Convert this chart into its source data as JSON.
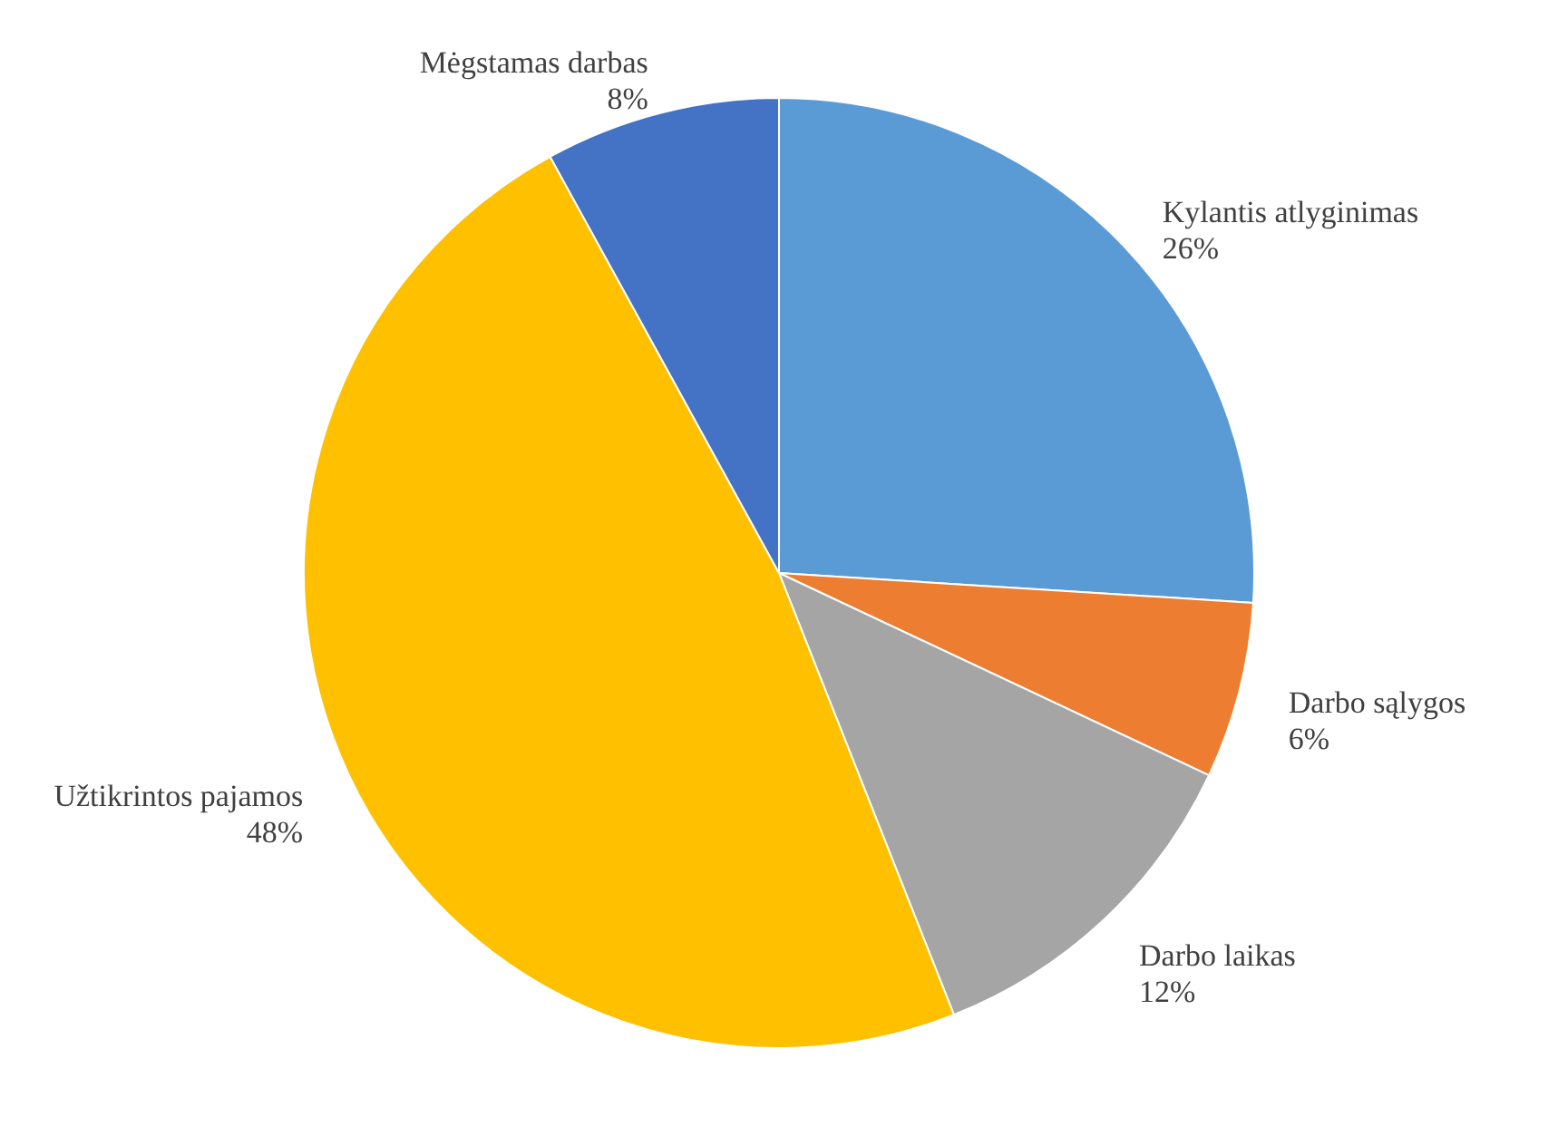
{
  "chart_data": {
    "type": "pie",
    "categories": [
      "Kylantis atlyginimas",
      "Darbo sąlygos",
      "Darbo laikas",
      "Užtikrintos pajamos",
      "Mėgstamas darbas"
    ],
    "values": [
      26,
      6,
      12,
      48,
      8
    ],
    "value_labels": [
      "26%",
      "6%",
      "12%",
      "48%",
      "8%"
    ],
    "colors": [
      "#5b9bd5",
      "#ed7d31",
      "#a5a5a5",
      "#ffc000",
      "#4472c4"
    ]
  }
}
